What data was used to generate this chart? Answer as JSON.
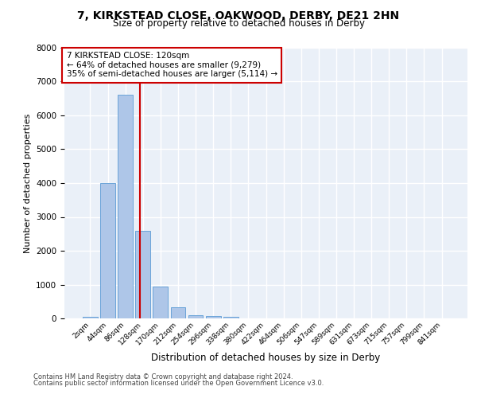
{
  "title_line1": "7, KIRKSTEAD CLOSE, OAKWOOD, DERBY, DE21 2HN",
  "title_line2": "Size of property relative to detached houses in Derby",
  "xlabel": "Distribution of detached houses by size in Derby",
  "ylabel": "Number of detached properties",
  "bar_labels": [
    "2sqm",
    "44sqm",
    "86sqm",
    "128sqm",
    "170sqm",
    "212sqm",
    "254sqm",
    "296sqm",
    "338sqm",
    "380sqm",
    "422sqm",
    "464sqm",
    "506sqm",
    "547sqm",
    "589sqm",
    "631sqm",
    "673sqm",
    "715sqm",
    "757sqm",
    "799sqm",
    "841sqm"
  ],
  "bar_values": [
    50,
    4000,
    6600,
    2600,
    950,
    330,
    100,
    80,
    40,
    0,
    0,
    0,
    0,
    0,
    0,
    0,
    0,
    0,
    0,
    0,
    0
  ],
  "bar_color": "#aec6e8",
  "bar_edgecolor": "#5b9bd5",
  "vline_color": "#cc0000",
  "annotation_text": "7 KIRKSTEAD CLOSE: 120sqm\n← 64% of detached houses are smaller (9,279)\n35% of semi-detached houses are larger (5,114) →",
  "annotation_box_color": "#ffffff",
  "annotation_box_edgecolor": "#cc0000",
  "ylim": [
    0,
    8000
  ],
  "yticks": [
    0,
    1000,
    2000,
    3000,
    4000,
    5000,
    6000,
    7000,
    8000
  ],
  "background_color": "#eaf0f8",
  "grid_color": "#ffffff",
  "footer_line1": "Contains HM Land Registry data © Crown copyright and database right 2024.",
  "footer_line2": "Contains public sector information licensed under the Open Government Licence v3.0."
}
